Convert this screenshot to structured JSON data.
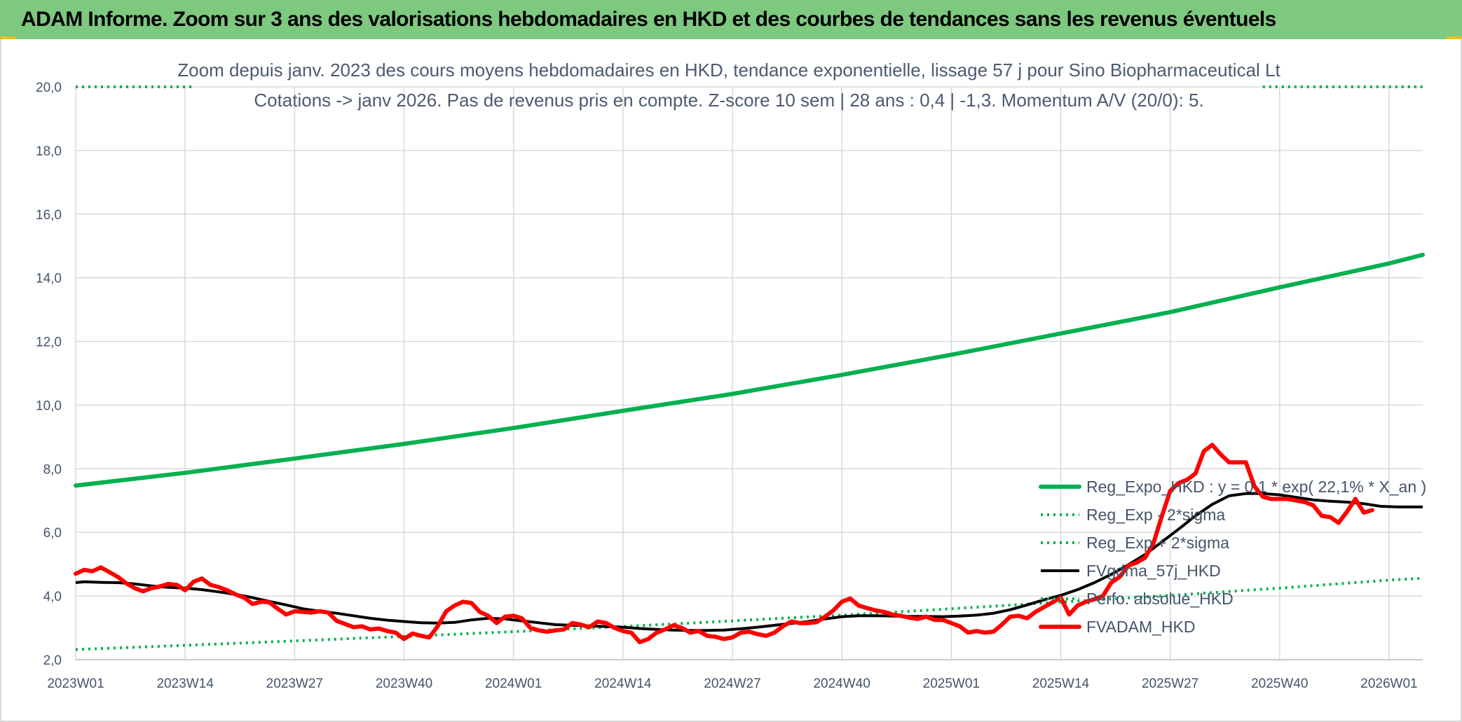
{
  "banner": {
    "title": "ADAM Informe. Zoom sur 3 ans des valorisations hebdomadaires en HKD et des courbes de tendances sans les revenus éventuels"
  },
  "colors": {
    "banner_bg": "#7dc97f",
    "green": "#00b050",
    "red": "#ff0000",
    "black": "#000000",
    "grid": "#d9d9d9",
    "text": "#44546a"
  },
  "chart_data": {
    "type": "line",
    "title_line1": "Zoom depuis janv. 2023 des cours moyens hebdomadaires en HKD, tendance exponentielle, lissage 57 j pour Sino Biopharmaceutical Lt",
    "title_line2": "Cotations -> janv 2026. Pas de revenus pris en compte. Z-score 10 sem | 28 ans : 0,4 | -1,3. Momentum A/V (20/0): 5.",
    "ylim": [
      2.0,
      20.0
    ],
    "yticks": [
      "2,0",
      "4,0",
      "6,0",
      "8,0",
      "10,0",
      "12,0",
      "14,0",
      "16,0",
      "18,0",
      "20,0"
    ],
    "x_range_weeks": [
      0,
      160
    ],
    "xticks": [
      {
        "label": "2023W01",
        "week": 0
      },
      {
        "label": "2023W14",
        "week": 13
      },
      {
        "label": "2023W27",
        "week": 26
      },
      {
        "label": "2023W40",
        "week": 39
      },
      {
        "label": "2024W01",
        "week": 52
      },
      {
        "label": "2024W14",
        "week": 65
      },
      {
        "label": "2024W27",
        "week": 78
      },
      {
        "label": "2024W40",
        "week": 91
      },
      {
        "label": "2025W01",
        "week": 104
      },
      {
        "label": "2025W14",
        "week": 117
      },
      {
        "label": "2025W27",
        "week": 130
      },
      {
        "label": "2025W40",
        "week": 143
      },
      {
        "label": "2026W01",
        "week": 156
      }
    ],
    "series": [
      {
        "name": "Reg_Expo_HKD : y = 0,1 * exp( 22,1% *  X_an )",
        "style": "solid-thick",
        "color": "#00b050",
        "points": [
          [
            0,
            7.47
          ],
          [
            13,
            7.87
          ],
          [
            26,
            8.32
          ],
          [
            39,
            8.78
          ],
          [
            52,
            9.28
          ],
          [
            65,
            9.82
          ],
          [
            78,
            10.35
          ],
          [
            91,
            10.95
          ],
          [
            104,
            11.58
          ],
          [
            117,
            12.25
          ],
          [
            130,
            12.92
          ],
          [
            143,
            13.7
          ],
          [
            156,
            14.45
          ],
          [
            160,
            14.72
          ]
        ]
      },
      {
        "name": "Reg_Exp - 2*sigma",
        "style": "dotted",
        "color": "#00b050",
        "points": [
          [
            0,
            2.32
          ],
          [
            13,
            2.45
          ],
          [
            26,
            2.59
          ],
          [
            39,
            2.73
          ],
          [
            52,
            2.88
          ],
          [
            65,
            3.04
          ],
          [
            78,
            3.22
          ],
          [
            91,
            3.4
          ],
          [
            104,
            3.6
          ],
          [
            117,
            3.81
          ],
          [
            130,
            4.02
          ],
          [
            143,
            4.25
          ],
          [
            156,
            4.5
          ],
          [
            160,
            4.56
          ]
        ]
      },
      {
        "name": "Reg_Exp + 2*sigma",
        "style": "dotted",
        "color": "#00b050",
        "points": [
          [
            0,
            20.0
          ],
          [
            14,
            20.0
          ]
        ],
        "points_right": [
          [
            141,
            20.0
          ],
          [
            160,
            20.0
          ]
        ]
      },
      {
        "name": "FVgdma_57j_HKD",
        "style": "solid",
        "color": "#000000",
        "points": [
          [
            0,
            4.42
          ],
          [
            1,
            4.45
          ],
          [
            3,
            4.43
          ],
          [
            5,
            4.42
          ],
          [
            7,
            4.38
          ],
          [
            9,
            4.32
          ],
          [
            11,
            4.27
          ],
          [
            13,
            4.25
          ],
          [
            15,
            4.2
          ],
          [
            17,
            4.13
          ],
          [
            19,
            4.05
          ],
          [
            21,
            3.95
          ],
          [
            23,
            3.83
          ],
          [
            25,
            3.72
          ],
          [
            27,
            3.6
          ],
          [
            29,
            3.52
          ],
          [
            31,
            3.46
          ],
          [
            33,
            3.38
          ],
          [
            35,
            3.3
          ],
          [
            37,
            3.24
          ],
          [
            39,
            3.2
          ],
          [
            41,
            3.16
          ],
          [
            43,
            3.15
          ],
          [
            45,
            3.17
          ],
          [
            47,
            3.25
          ],
          [
            49,
            3.3
          ],
          [
            51,
            3.28
          ],
          [
            53,
            3.22
          ],
          [
            55,
            3.16
          ],
          [
            57,
            3.1
          ],
          [
            59,
            3.08
          ],
          [
            61,
            3.06
          ],
          [
            63,
            3.04
          ],
          [
            65,
            3.02
          ],
          [
            67,
            2.98
          ],
          [
            69,
            2.95
          ],
          [
            71,
            2.93
          ],
          [
            73,
            2.92
          ],
          [
            75,
            2.92
          ],
          [
            77,
            2.93
          ],
          [
            79,
            2.97
          ],
          [
            81,
            3.02
          ],
          [
            83,
            3.08
          ],
          [
            85,
            3.14
          ],
          [
            87,
            3.2
          ],
          [
            89,
            3.28
          ],
          [
            91,
            3.35
          ],
          [
            93,
            3.38
          ],
          [
            95,
            3.38
          ],
          [
            97,
            3.37
          ],
          [
            99,
            3.36
          ],
          [
            101,
            3.36
          ],
          [
            103,
            3.35
          ],
          [
            105,
            3.37
          ],
          [
            107,
            3.4
          ],
          [
            109,
            3.46
          ],
          [
            111,
            3.57
          ],
          [
            113,
            3.72
          ],
          [
            115,
            3.88
          ],
          [
            117,
            4.02
          ],
          [
            119,
            4.2
          ],
          [
            121,
            4.42
          ],
          [
            123,
            4.68
          ],
          [
            125,
            4.98
          ],
          [
            127,
            5.3
          ],
          [
            129,
            5.7
          ],
          [
            131,
            6.1
          ],
          [
            133,
            6.52
          ],
          [
            135,
            6.88
          ],
          [
            137,
            7.15
          ],
          [
            139,
            7.22
          ],
          [
            141,
            7.22
          ],
          [
            143,
            7.18
          ],
          [
            145,
            7.1
          ],
          [
            147,
            7.02
          ],
          [
            149,
            6.98
          ],
          [
            151,
            6.95
          ],
          [
            153,
            6.9
          ],
          [
            155,
            6.82
          ],
          [
            157,
            6.8
          ],
          [
            160,
            6.8
          ]
        ]
      },
      {
        "name": "Perfo. absolue_HKD",
        "style": "dotted",
        "color": "#00b050",
        "points": []
      },
      {
        "name": "FVADAM_HKD",
        "style": "solid-thick",
        "color": "#ff0000",
        "points": [
          [
            0,
            4.7
          ],
          [
            1,
            4.82
          ],
          [
            2,
            4.78
          ],
          [
            3,
            4.9
          ],
          [
            4,
            4.75
          ],
          [
            5,
            4.6
          ],
          [
            6,
            4.4
          ],
          [
            7,
            4.25
          ],
          [
            8,
            4.15
          ],
          [
            9,
            4.25
          ],
          [
            10,
            4.3
          ],
          [
            11,
            4.38
          ],
          [
            12,
            4.35
          ],
          [
            13,
            4.18
          ],
          [
            14,
            4.45
          ],
          [
            15,
            4.55
          ],
          [
            16,
            4.35
          ],
          [
            17,
            4.28
          ],
          [
            18,
            4.18
          ],
          [
            19,
            4.05
          ],
          [
            20,
            3.95
          ],
          [
            21,
            3.75
          ],
          [
            22,
            3.82
          ],
          [
            23,
            3.8
          ],
          [
            24,
            3.6
          ],
          [
            25,
            3.42
          ],
          [
            26,
            3.52
          ],
          [
            27,
            3.5
          ],
          [
            28,
            3.48
          ],
          [
            29,
            3.52
          ],
          [
            30,
            3.48
          ],
          [
            31,
            3.22
          ],
          [
            32,
            3.12
          ],
          [
            33,
            3.02
          ],
          [
            34,
            3.05
          ],
          [
            35,
            2.95
          ],
          [
            36,
            2.98
          ],
          [
            37,
            2.9
          ],
          [
            38,
            2.85
          ],
          [
            39,
            2.65
          ],
          [
            40,
            2.82
          ],
          [
            41,
            2.75
          ],
          [
            42,
            2.7
          ],
          [
            43,
            3.05
          ],
          [
            44,
            3.52
          ],
          [
            45,
            3.7
          ],
          [
            46,
            3.82
          ],
          [
            47,
            3.78
          ],
          [
            48,
            3.5
          ],
          [
            49,
            3.38
          ],
          [
            50,
            3.15
          ],
          [
            51,
            3.35
          ],
          [
            52,
            3.38
          ],
          [
            53,
            3.3
          ],
          [
            54,
            3.0
          ],
          [
            55,
            2.92
          ],
          [
            56,
            2.88
          ],
          [
            57,
            2.92
          ],
          [
            58,
            2.95
          ],
          [
            59,
            3.15
          ],
          [
            60,
            3.1
          ],
          [
            61,
            3.02
          ],
          [
            62,
            3.2
          ],
          [
            63,
            3.15
          ],
          [
            64,
            3.0
          ],
          [
            65,
            2.9
          ],
          [
            66,
            2.85
          ],
          [
            67,
            2.55
          ],
          [
            68,
            2.65
          ],
          [
            69,
            2.85
          ],
          [
            70,
            2.95
          ],
          [
            71,
            3.08
          ],
          [
            72,
            3.0
          ],
          [
            73,
            2.85
          ],
          [
            74,
            2.9
          ],
          [
            75,
            2.75
          ],
          [
            76,
            2.72
          ],
          [
            77,
            2.65
          ],
          [
            78,
            2.7
          ],
          [
            79,
            2.85
          ],
          [
            80,
            2.88
          ],
          [
            81,
            2.8
          ],
          [
            82,
            2.75
          ],
          [
            83,
            2.85
          ],
          [
            84,
            3.05
          ],
          [
            85,
            3.2
          ],
          [
            86,
            3.15
          ],
          [
            87,
            3.15
          ],
          [
            88,
            3.18
          ],
          [
            89,
            3.35
          ],
          [
            90,
            3.55
          ],
          [
            91,
            3.82
          ],
          [
            92,
            3.92
          ],
          [
            93,
            3.7
          ],
          [
            94,
            3.62
          ],
          [
            95,
            3.55
          ],
          [
            96,
            3.5
          ],
          [
            97,
            3.42
          ],
          [
            98,
            3.38
          ],
          [
            99,
            3.32
          ],
          [
            100,
            3.28
          ],
          [
            101,
            3.35
          ],
          [
            102,
            3.25
          ],
          [
            103,
            3.25
          ],
          [
            104,
            3.15
          ],
          [
            105,
            3.05
          ],
          [
            106,
            2.85
          ],
          [
            107,
            2.9
          ],
          [
            108,
            2.85
          ],
          [
            109,
            2.88
          ],
          [
            110,
            3.1
          ],
          [
            111,
            3.35
          ],
          [
            112,
            3.38
          ],
          [
            113,
            3.3
          ],
          [
            114,
            3.5
          ],
          [
            115,
            3.65
          ],
          [
            116,
            3.8
          ],
          [
            117,
            3.95
          ],
          [
            118,
            3.42
          ],
          [
            119,
            3.7
          ],
          [
            120,
            3.82
          ],
          [
            121,
            3.9
          ],
          [
            122,
            4.0
          ],
          [
            123,
            4.42
          ],
          [
            124,
            4.6
          ],
          [
            125,
            4.95
          ],
          [
            126,
            5.05
          ],
          [
            127,
            5.2
          ],
          [
            128,
            5.65
          ],
          [
            129,
            6.5
          ],
          [
            130,
            7.3
          ],
          [
            131,
            7.55
          ],
          [
            132,
            7.65
          ],
          [
            133,
            7.85
          ],
          [
            134,
            8.55
          ],
          [
            135,
            8.75
          ],
          [
            136,
            8.45
          ],
          [
            137,
            8.2
          ],
          [
            138,
            8.2
          ],
          [
            139,
            8.2
          ],
          [
            140,
            7.45
          ],
          [
            141,
            7.12
          ],
          [
            142,
            7.05
          ],
          [
            143,
            7.05
          ],
          [
            144,
            7.05
          ],
          [
            145,
            7.0
          ],
          [
            146,
            6.95
          ],
          [
            147,
            6.85
          ],
          [
            148,
            6.52
          ],
          [
            149,
            6.48
          ],
          [
            150,
            6.3
          ],
          [
            151,
            6.65
          ],
          [
            152,
            7.05
          ],
          [
            153,
            6.62
          ],
          [
            154,
            6.7
          ]
        ]
      }
    ]
  }
}
